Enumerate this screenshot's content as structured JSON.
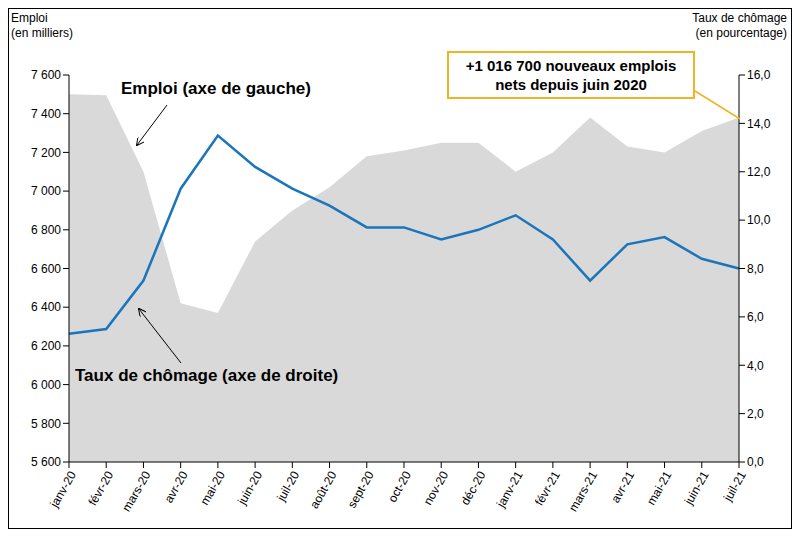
{
  "chart_data": {
    "type": "line",
    "y_label": "Emploi\n(en milliers)",
    "y2_label": "Taux de chômage\n(en pourcentage)",
    "annotations": [
      "+1 016 700 nouveaux emplois\nnets depuis juin 2020"
    ],
    "grid": false,
    "categories": [
      "janv-20",
      "févr-20",
      "mars-20",
      "avr-20",
      "mai-20",
      "juin-20",
      "juil-20",
      "août-20",
      "sept-20",
      "oct-20",
      "nov-20",
      "déc-20",
      "janv-21",
      "févr-21",
      "mars-21",
      "avr-21",
      "mai-21",
      "juin-21",
      "juil-21"
    ],
    "ylim": [
      5600,
      7600
    ],
    "yticks": [
      {
        "value": 5600,
        "label": "5 600"
      },
      {
        "value": 5800,
        "label": "5 800"
      },
      {
        "value": 6000,
        "label": "6 000"
      },
      {
        "value": 6200,
        "label": "6 200"
      },
      {
        "value": 6400,
        "label": "6 400"
      },
      {
        "value": 6600,
        "label": "6 600"
      },
      {
        "value": 6800,
        "label": "6 800"
      },
      {
        "value": 7000,
        "label": "7 000"
      },
      {
        "value": 7200,
        "label": "7 200"
      },
      {
        "value": 7400,
        "label": "7 400"
      },
      {
        "value": 7600,
        "label": "7 600"
      }
    ],
    "y2lim": [
      0,
      16
    ],
    "y2ticks": [
      {
        "value": 0,
        "label": "0,0"
      },
      {
        "value": 2,
        "label": "2,0"
      },
      {
        "value": 4,
        "label": "4,0"
      },
      {
        "value": 6,
        "label": "6,0"
      },
      {
        "value": 8,
        "label": "8,0"
      },
      {
        "value": 10,
        "label": "10,0"
      },
      {
        "value": 12,
        "label": "12,0"
      },
      {
        "value": 14,
        "label": "14,0"
      },
      {
        "value": 16,
        "label": "16,0"
      }
    ],
    "series": [
      {
        "name": "Emploi (axe de gauche)",
        "type": "area",
        "color": "#d9d9d9",
        "values": [
          7500,
          7495,
          7100,
          6420,
          6370,
          6740,
          6900,
          7020,
          7180,
          7210,
          7250,
          7250,
          7100,
          7200,
          7380,
          7230,
          7200,
          7310,
          7380
        ]
      },
      {
        "name": "Taux de chômage (axe de droite)",
        "type": "line",
        "axis": "y2",
        "color": "#1b75bb",
        "values": [
          5.3,
          5.5,
          7.5,
          11.3,
          13.5,
          12.2,
          11.3,
          10.6,
          9.7,
          9.7,
          9.2,
          9.6,
          10.2,
          9.2,
          7.5,
          9.0,
          9.3,
          8.4,
          8.0
        ]
      }
    ]
  }
}
